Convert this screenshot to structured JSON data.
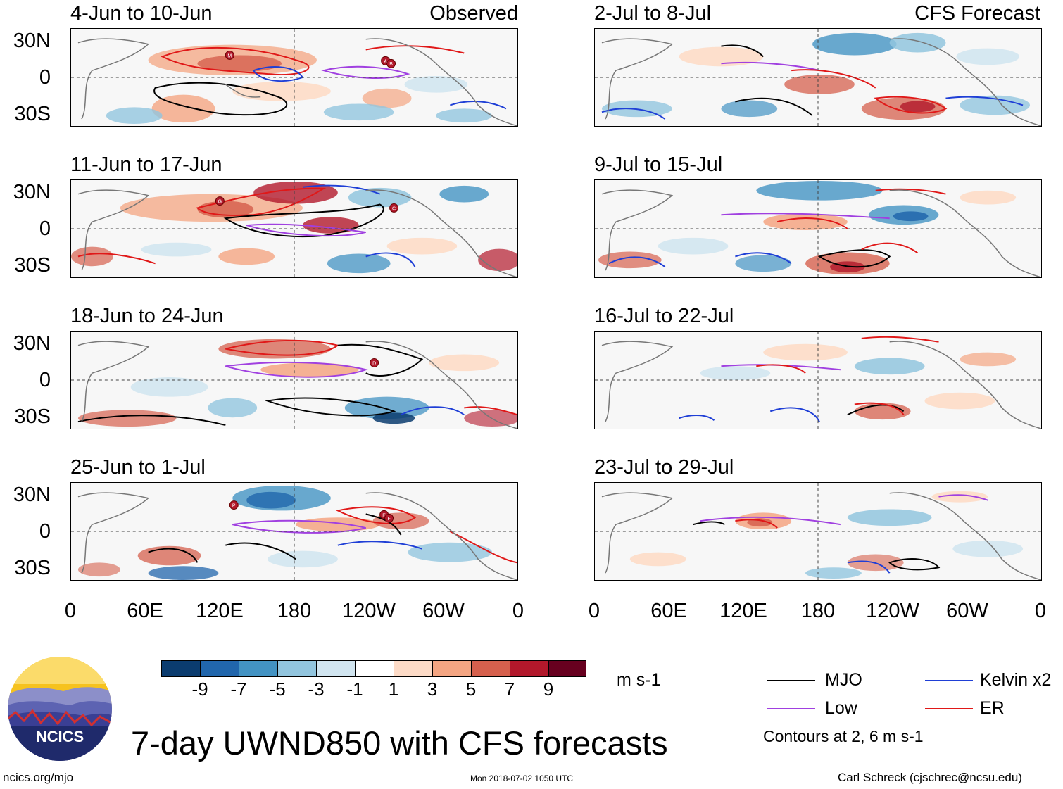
{
  "panels": [
    {
      "title": "4-Jun to 10-Jun",
      "label": "Observed"
    },
    {
      "title": "11-Jun to 17-Jun",
      "label": ""
    },
    {
      "title": "18-Jun to 24-Jun",
      "label": ""
    },
    {
      "title": "25-Jun to 1-Jul",
      "label": ""
    },
    {
      "title": "2-Jul to 8-Jul",
      "label": "CFS Forecast"
    },
    {
      "title": "9-Jul to 15-Jul",
      "label": ""
    },
    {
      "title": "16-Jul to 22-Jul",
      "label": ""
    },
    {
      "title": "23-Jul to 29-Jul",
      "label": ""
    }
  ],
  "axes": {
    "y_labels": [
      "30N",
      "0",
      "30S"
    ],
    "x_labels": [
      "0",
      "60E",
      "120E",
      "180",
      "120W",
      "60W",
      "0"
    ]
  },
  "colorbar": {
    "labels": [
      "-9",
      "-7",
      "-5",
      "-3",
      "-1",
      "1",
      "3",
      "5",
      "7",
      "9"
    ],
    "units": "m s-1",
    "colors": [
      "#0b3c6f",
      "#2166ac",
      "#4393c3",
      "#92c5de",
      "#d1e5f0",
      "#ffffff",
      "#fddbc7",
      "#f4a582",
      "#d6604d",
      "#b2182b",
      "#67001f"
    ]
  },
  "legend": {
    "items": [
      {
        "label": "MJO",
        "color": "#000000"
      },
      {
        "label": "Kelvin x2",
        "color": "#1f3fd6"
      },
      {
        "label": "Low",
        "color": "#a040e0"
      },
      {
        "label": "ER",
        "color": "#e01818"
      }
    ],
    "contours_note": "Contours at 2, 6 m s-1"
  },
  "title": "7-day UWND850 with CFS forecasts",
  "logo": {
    "text": "NCICS"
  },
  "footer": {
    "url": "ncics.org/mjo",
    "timestamp": "Mon 2018-07-02 1050 UTC",
    "author": "Carl Schreck (cjschrec@ncsu.edu)"
  },
  "storm_labels": [
    "M",
    "A",
    "B",
    "G",
    "C",
    "D",
    "P",
    "E",
    "F"
  ]
}
